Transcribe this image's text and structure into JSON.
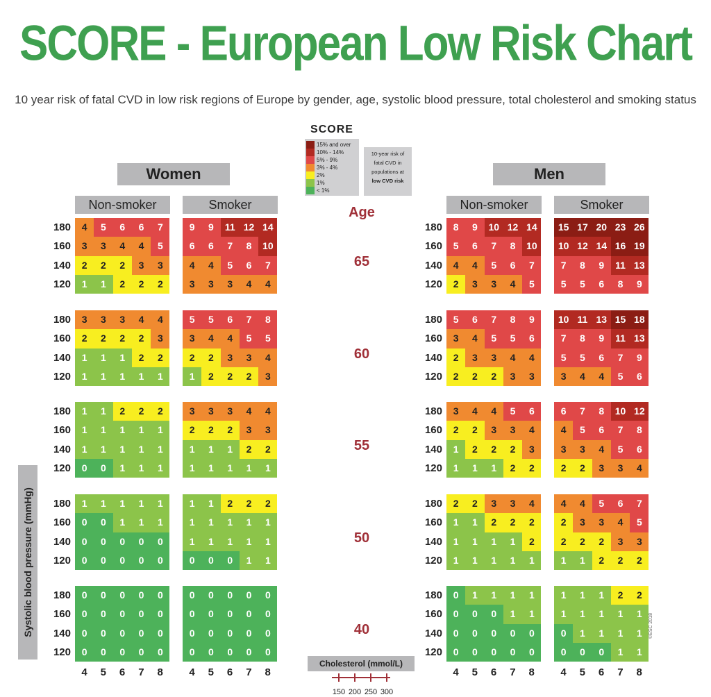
{
  "title": "SCORE - European Low Risk Chart",
  "subtitle": "10 year risk of fatal CVD in low risk regions of Europe by gender, age, systolic blood pressure, total cholesterol and smoking status",
  "legend": {
    "logo": "SCORE",
    "levels": [
      {
        "label": "15% and over",
        "color": "#8b1d14"
      },
      {
        "label": "10% - 14%",
        "color": "#b22a22"
      },
      {
        "label": "5% - 9%",
        "color": "#e04848"
      },
      {
        "label": "3% - 4%",
        "color": "#f08a30"
      },
      {
        "label": "2%",
        "color": "#f8ee20"
      },
      {
        "label": "1%",
        "color": "#8cc44a"
      },
      {
        "label": "< 1%",
        "color": "#4db25a"
      }
    ],
    "note_lines": [
      "10-year risk of",
      "fatal CVD in",
      "populations at",
      "low CVD risk"
    ]
  },
  "headers": {
    "women": "Women",
    "men": "Men",
    "non_smoker": "Non-smoker",
    "smoker": "Smoker",
    "age": "Age"
  },
  "y_axis_label": "Systolic blood pressure (mmHg)",
  "x_axis_label": "Cholesterol (mmol/L)",
  "cholesterol_mgdl_ticks": [
    "150",
    "200",
    "250",
    "300"
  ],
  "copyright": "©ESC 2018",
  "chart_data": {
    "type": "heatmap",
    "ages": [
      65,
      60,
      55,
      50,
      40
    ],
    "sbp": [
      180,
      160,
      140,
      120
    ],
    "cholesterol": [
      4,
      5,
      6,
      7,
      8
    ],
    "panels": {
      "women_nonsmoker": [
        [
          [
            4,
            5,
            6,
            6,
            7
          ],
          [
            3,
            3,
            4,
            4,
            5
          ],
          [
            2,
            2,
            2,
            3,
            3
          ],
          [
            1,
            1,
            2,
            2,
            2
          ]
        ],
        [
          [
            3,
            3,
            3,
            4,
            4
          ],
          [
            2,
            2,
            2,
            2,
            3
          ],
          [
            1,
            1,
            1,
            2,
            2
          ],
          [
            1,
            1,
            1,
            1,
            1
          ]
        ],
        [
          [
            1,
            1,
            2,
            2,
            2
          ],
          [
            1,
            1,
            1,
            1,
            1
          ],
          [
            1,
            1,
            1,
            1,
            1
          ],
          [
            0,
            0,
            1,
            1,
            1
          ]
        ],
        [
          [
            1,
            1,
            1,
            1,
            1
          ],
          [
            0,
            0,
            1,
            1,
            1
          ],
          [
            0,
            0,
            0,
            0,
            0
          ],
          [
            0,
            0,
            0,
            0,
            0
          ]
        ],
        [
          [
            0,
            0,
            0,
            0,
            0
          ],
          [
            0,
            0,
            0,
            0,
            0
          ],
          [
            0,
            0,
            0,
            0,
            0
          ],
          [
            0,
            0,
            0,
            0,
            0
          ]
        ]
      ],
      "women_smoker": [
        [
          [
            9,
            9,
            11,
            12,
            14
          ],
          [
            6,
            6,
            7,
            8,
            10
          ],
          [
            4,
            4,
            5,
            6,
            7
          ],
          [
            3,
            3,
            3,
            4,
            4
          ]
        ],
        [
          [
            5,
            5,
            6,
            7,
            8
          ],
          [
            3,
            4,
            4,
            5,
            5
          ],
          [
            2,
            2,
            3,
            3,
            4
          ],
          [
            1,
            2,
            2,
            2,
            3
          ]
        ],
        [
          [
            3,
            3,
            3,
            4,
            4
          ],
          [
            2,
            2,
            2,
            3,
            3
          ],
          [
            1,
            1,
            1,
            2,
            2
          ],
          [
            1,
            1,
            1,
            1,
            1
          ]
        ],
        [
          [
            1,
            1,
            2,
            2,
            2
          ],
          [
            1,
            1,
            1,
            1,
            1
          ],
          [
            1,
            1,
            1,
            1,
            1
          ],
          [
            0,
            0,
            0,
            1,
            1
          ]
        ],
        [
          [
            0,
            0,
            0,
            0,
            0
          ],
          [
            0,
            0,
            0,
            0,
            0
          ],
          [
            0,
            0,
            0,
            0,
            0
          ],
          [
            0,
            0,
            0,
            0,
            0
          ]
        ]
      ],
      "men_nonsmoker": [
        [
          [
            8,
            9,
            10,
            12,
            14
          ],
          [
            5,
            6,
            7,
            8,
            10
          ],
          [
            4,
            4,
            5,
            6,
            7
          ],
          [
            2,
            3,
            3,
            4,
            5
          ]
        ],
        [
          [
            5,
            6,
            7,
            8,
            9
          ],
          [
            3,
            4,
            5,
            5,
            6
          ],
          [
            2,
            3,
            3,
            4,
            4
          ],
          [
            2,
            2,
            2,
            3,
            3
          ]
        ],
        [
          [
            3,
            4,
            4,
            5,
            6
          ],
          [
            2,
            2,
            3,
            3,
            4
          ],
          [
            1,
            2,
            2,
            2,
            3
          ],
          [
            1,
            1,
            1,
            2,
            2
          ]
        ],
        [
          [
            2,
            2,
            3,
            3,
            4
          ],
          [
            1,
            1,
            2,
            2,
            2
          ],
          [
            1,
            1,
            1,
            1,
            2
          ],
          [
            1,
            1,
            1,
            1,
            1
          ]
        ],
        [
          [
            0,
            1,
            1,
            1,
            1
          ],
          [
            0,
            0,
            0,
            1,
            1
          ],
          [
            0,
            0,
            0,
            0,
            0
          ],
          [
            0,
            0,
            0,
            0,
            0
          ]
        ]
      ],
      "men_smoker": [
        [
          [
            15,
            17,
            20,
            23,
            26
          ],
          [
            10,
            12,
            14,
            16,
            19
          ],
          [
            7,
            8,
            9,
            11,
            13
          ],
          [
            5,
            5,
            6,
            8,
            9
          ]
        ],
        [
          [
            10,
            11,
            13,
            15,
            18
          ],
          [
            7,
            8,
            9,
            11,
            13
          ],
          [
            5,
            5,
            6,
            7,
            9
          ],
          [
            3,
            4,
            4,
            5,
            6
          ]
        ],
        [
          [
            6,
            7,
            8,
            10,
            12
          ],
          [
            4,
            5,
            6,
            7,
            8
          ],
          [
            3,
            3,
            4,
            5,
            6
          ],
          [
            2,
            2,
            3,
            3,
            4
          ]
        ],
        [
          [
            4,
            4,
            5,
            6,
            7
          ],
          [
            2,
            3,
            3,
            4,
            5
          ],
          [
            2,
            2,
            2,
            3,
            3
          ],
          [
            1,
            1,
            2,
            2,
            2
          ]
        ],
        [
          [
            1,
            1,
            1,
            2,
            2
          ],
          [
            1,
            1,
            1,
            1,
            1
          ],
          [
            0,
            1,
            1,
            1,
            1
          ],
          [
            0,
            0,
            0,
            1,
            1
          ]
        ]
      ]
    }
  }
}
